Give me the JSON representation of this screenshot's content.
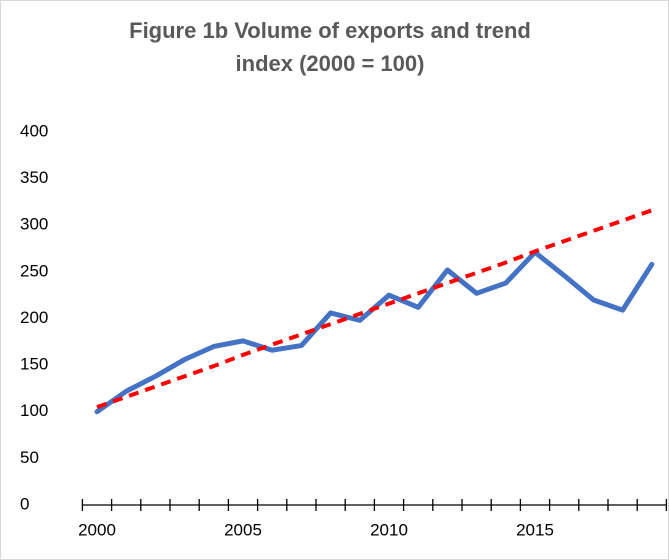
{
  "chart_data": {
    "type": "line",
    "title": "Figure 1b Volume of exports and trend index (2000 = 100)",
    "categories": [
      2000,
      null,
      null,
      null,
      null,
      2005,
      null,
      null,
      null,
      null,
      2010,
      null,
      null,
      null,
      null,
      2015,
      null,
      null,
      null,
      null
    ],
    "series": [
      {
        "color": "#4472c4",
        "linestyle": "solid",
        "values": [
          100,
          122,
          138,
          156,
          170,
          176,
          166,
          171,
          206,
          198,
          225,
          212,
          252,
          227,
          238,
          271,
          246,
          220,
          209,
          258
        ]
      },
      {
        "color": "#ff0000",
        "linestyle": "dashed",
        "values": [
          105,
          116,
          127,
          138,
          149,
          161,
          172,
          183,
          194,
          205,
          216,
          227,
          238,
          249,
          260,
          272,
          283,
          294,
          305,
          316
        ]
      }
    ],
    "ylim": [
      0,
      400
    ],
    "yticks": [
      0,
      50,
      100,
      150,
      200,
      250,
      300,
      350,
      400
    ],
    "grid": false
  }
}
